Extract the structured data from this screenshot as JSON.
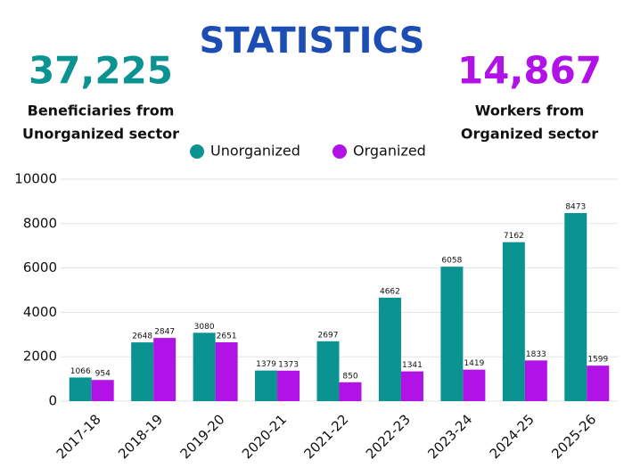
{
  "chart_data": {
    "type": "bar",
    "title": "STATISTICS",
    "highlights": [
      {
        "figure": "37,225",
        "lines": [
          "Beneficiaries from",
          "Unorganized sector"
        ],
        "color": "#0b9392"
      },
      {
        "figure": "14,867",
        "lines": [
          "Workers from",
          "Organized sector"
        ],
        "color": "#b113e6"
      }
    ],
    "categories": [
      "2017-18",
      "2018-19",
      "2019-20",
      "2020-21",
      "2021-22",
      "2022-23",
      "2023-24",
      "2024-25",
      "2025-26"
    ],
    "series": [
      {
        "name": "Unorganized",
        "color": "#0b9392",
        "values": [
          1066,
          2648,
          3080,
          1379,
          2697,
          4662,
          6058,
          7162,
          8473
        ]
      },
      {
        "name": "Organized",
        "color": "#b113e6",
        "values": [
          954,
          2847,
          2651,
          1373,
          850,
          1341,
          1419,
          1833,
          1599
        ]
      }
    ],
    "ylim": [
      0,
      10000
    ],
    "yticks": [
      0,
      2000,
      4000,
      6000,
      8000,
      10000
    ],
    "grid": true,
    "title_color": "#1b4db3"
  }
}
